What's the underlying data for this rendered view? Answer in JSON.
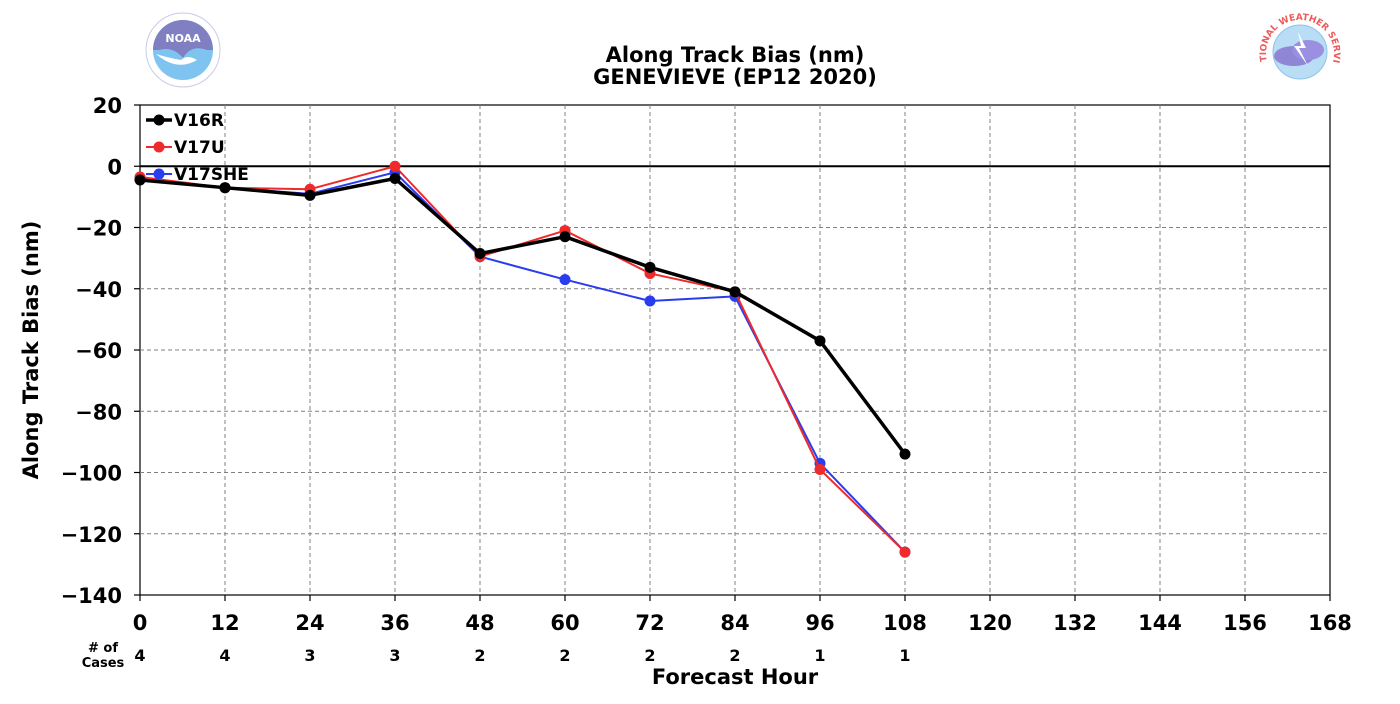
{
  "chart_data": {
    "type": "line",
    "title": "Along Track Bias (nm)",
    "subtitle": "GENEVIEVE (EP12 2020)",
    "xlabel": "Forecast Hour",
    "ylabel": "Along Track Bias (nm)",
    "xlim": [
      0,
      168
    ],
    "ylim": [
      -140,
      20
    ],
    "x_ticks": [
      0,
      12,
      24,
      36,
      48,
      60,
      72,
      84,
      96,
      108,
      120,
      132,
      144,
      156,
      168
    ],
    "y_ticks": [
      20,
      0,
      -20,
      -40,
      -60,
      -80,
      -100,
      -120,
      -140
    ],
    "grid": true,
    "legend_position": "top-left",
    "series": [
      {
        "name": "V16R",
        "color": "#000000",
        "x": [
          0,
          12,
          24,
          36,
          48,
          60,
          72,
          84,
          96,
          108
        ],
        "values": [
          -4.5,
          -7,
          -9.5,
          -4,
          -28.5,
          -23,
          -33,
          -41,
          -57,
          -94
        ]
      },
      {
        "name": "V17U",
        "color": "#ee2a2a",
        "x": [
          0,
          12,
          24,
          36,
          48,
          60,
          72,
          84,
          96,
          108
        ],
        "values": [
          -3.5,
          -7,
          -7.5,
          0,
          -29.5,
          -21,
          -35,
          -41,
          -99,
          -126
        ]
      },
      {
        "name": "V17SHE",
        "color": "#2a3cf0",
        "x": [
          0,
          12,
          24,
          36,
          48,
          60,
          72,
          84,
          96,
          108
        ],
        "values": [
          -4,
          -7,
          -9,
          -2,
          -29.5,
          -37,
          -44,
          -42.5,
          -97,
          -126
        ]
      }
    ],
    "cases_label": "# of\nCases",
    "cases": [
      {
        "x": 0,
        "n": "4"
      },
      {
        "x": 12,
        "n": "4"
      },
      {
        "x": 24,
        "n": "3"
      },
      {
        "x": 36,
        "n": "3"
      },
      {
        "x": 48,
        "n": "2"
      },
      {
        "x": 60,
        "n": "2"
      },
      {
        "x": 72,
        "n": "2"
      },
      {
        "x": 84,
        "n": "2"
      },
      {
        "x": 96,
        "n": "1"
      },
      {
        "x": 108,
        "n": "1"
      }
    ]
  },
  "logos": {
    "left": {
      "text": "NOAA",
      "icon": "noaa-logo-icon"
    },
    "right": {
      "text": "NATIONAL WEATHER SERVICE",
      "icon": "nws-logo-icon"
    }
  }
}
